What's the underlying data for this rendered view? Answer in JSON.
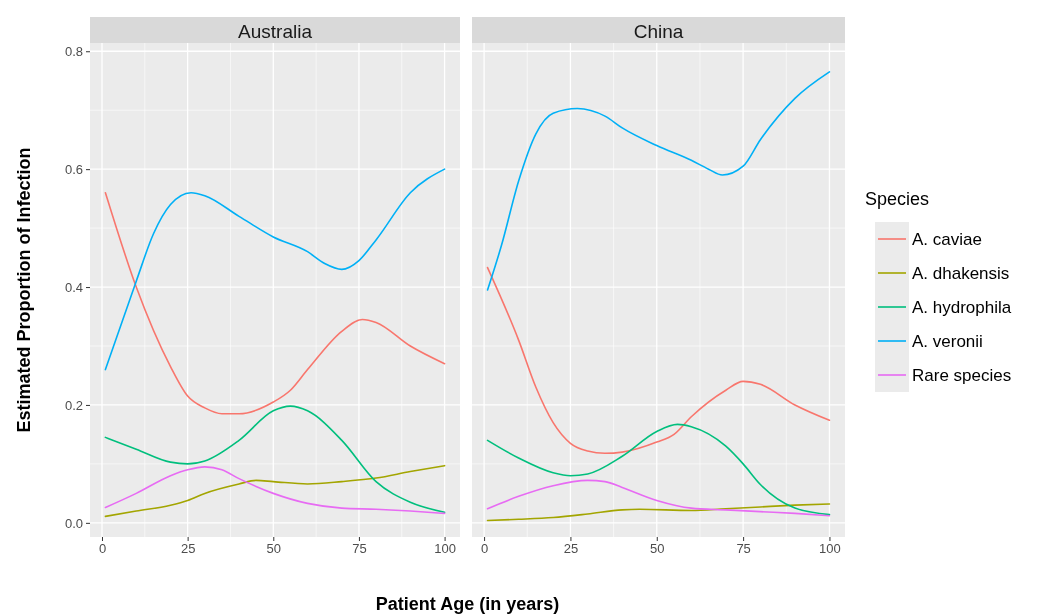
{
  "chart_data": [
    {
      "type": "line",
      "title": "Australia",
      "xlabel": "Patient Age (in years)",
      "ylabel": "Estimated Proportion of Infection",
      "xlim": [
        -3.5,
        104.5
      ],
      "ylim": [
        -0.024,
        0.814
      ],
      "xticks": [
        0,
        25,
        50,
        75,
        100
      ],
      "yticks": [
        {
          "value": 0,
          "label": "0.0"
        },
        0.2,
        0.4,
        0.6,
        0.8
      ],
      "grid": true,
      "legend": false,
      "series": [
        {
          "color": "#f8766d",
          "x": [
            1,
            10,
            20,
            25,
            30,
            35,
            40,
            50,
            55,
            60,
            70,
            76,
            80,
            90,
            100
          ],
          "values": [
            0.56,
            0.4,
            0.265,
            0.215,
            0.195,
            0.185,
            0.185,
            0.205,
            0.225,
            0.26,
            0.325,
            0.345,
            0.34,
            0.3,
            0.27
          ]
        },
        {
          "color": "#a3a500",
          "x": [
            1,
            10,
            20,
            25,
            30,
            40,
            45,
            50,
            60,
            70,
            80,
            90,
            100
          ],
          "values": [
            0.011,
            0.02,
            0.03,
            0.038,
            0.05,
            0.066,
            0.072,
            0.07,
            0.066,
            0.07,
            0.076,
            0.087,
            0.097
          ]
        },
        {
          "color": "#00bf7d",
          "x": [
            1,
            10,
            20,
            25,
            30,
            40,
            50,
            55,
            60,
            70,
            80,
            90,
            100
          ],
          "values": [
            0.145,
            0.125,
            0.103,
            0.1,
            0.105,
            0.14,
            0.19,
            0.198,
            0.19,
            0.14,
            0.07,
            0.035,
            0.018
          ]
        },
        {
          "color": "#00b0f6",
          "x": [
            1,
            10,
            15,
            20,
            26,
            30,
            40,
            50,
            60,
            65,
            70,
            75,
            80,
            90,
            100
          ],
          "values": [
            0.26,
            0.41,
            0.49,
            0.54,
            0.56,
            0.555,
            0.52,
            0.485,
            0.46,
            0.44,
            0.43,
            0.445,
            0.48,
            0.56,
            0.6
          ]
        },
        {
          "color": "#e76bf3",
          "x": [
            1,
            10,
            20,
            25,
            30,
            35,
            40,
            50,
            60,
            70,
            80,
            90,
            100
          ],
          "values": [
            0.026,
            0.05,
            0.08,
            0.09,
            0.095,
            0.09,
            0.075,
            0.05,
            0.033,
            0.025,
            0.023,
            0.02,
            0.016
          ]
        }
      ]
    },
    {
      "type": "line",
      "title": "China",
      "legend_title": "Species",
      "xlim": [
        -3.5,
        104.5
      ],
      "ylim": [
        -0.024,
        0.814
      ],
      "xticks": [
        0,
        25,
        50,
        75,
        100
      ],
      "yticks": [
        0,
        0.2,
        0.4,
        0.6,
        0.8
      ],
      "grid": true,
      "legend": "right",
      "tick_labels": "x",
      "series": [
        {
          "name": "A. caviae",
          "color": "#f8766d",
          "x": [
            1,
            10,
            15,
            20,
            25,
            30,
            35,
            40,
            50,
            55,
            60,
            70,
            75,
            80,
            90,
            100
          ],
          "values": [
            0.433,
            0.31,
            0.23,
            0.17,
            0.135,
            0.122,
            0.118,
            0.12,
            0.137,
            0.15,
            0.18,
            0.225,
            0.24,
            0.235,
            0.2,
            0.174
          ]
        },
        {
          "name": "A. dhakensis",
          "color": "#a3a500",
          "x": [
            1,
            10,
            20,
            30,
            40,
            45,
            60,
            70,
            80,
            90,
            100
          ],
          "values": [
            0.004,
            0.006,
            0.009,
            0.015,
            0.022,
            0.023,
            0.021,
            0.024,
            0.027,
            0.03,
            0.032
          ]
        },
        {
          "name": "A. hydrophila",
          "color": "#00bf7d",
          "x": [
            1,
            10,
            20,
            25,
            30,
            40,
            50,
            56,
            60,
            70,
            75,
            80,
            90,
            100
          ],
          "values": [
            0.14,
            0.11,
            0.085,
            0.08,
            0.083,
            0.113,
            0.155,
            0.167,
            0.163,
            0.13,
            0.1,
            0.065,
            0.025,
            0.014
          ]
        },
        {
          "name": "A. veronii",
          "color": "#00b0f6",
          "x": [
            1,
            5,
            10,
            15,
            20,
            27,
            35,
            40,
            50,
            60,
            65,
            69,
            75,
            80,
            90,
            100
          ],
          "values": [
            0.395,
            0.47,
            0.58,
            0.66,
            0.695,
            0.703,
            0.69,
            0.67,
            0.64,
            0.615,
            0.6,
            0.59,
            0.605,
            0.65,
            0.72,
            0.765
          ]
        },
        {
          "name": "Rare species",
          "color": "#e76bf3",
          "x": [
            1,
            10,
            20,
            30,
            35,
            40,
            50,
            60,
            70,
            80,
            90,
            100
          ],
          "values": [
            0.024,
            0.045,
            0.063,
            0.072,
            0.07,
            0.06,
            0.038,
            0.025,
            0.022,
            0.019,
            0.016,
            0.012
          ]
        }
      ]
    }
  ]
}
